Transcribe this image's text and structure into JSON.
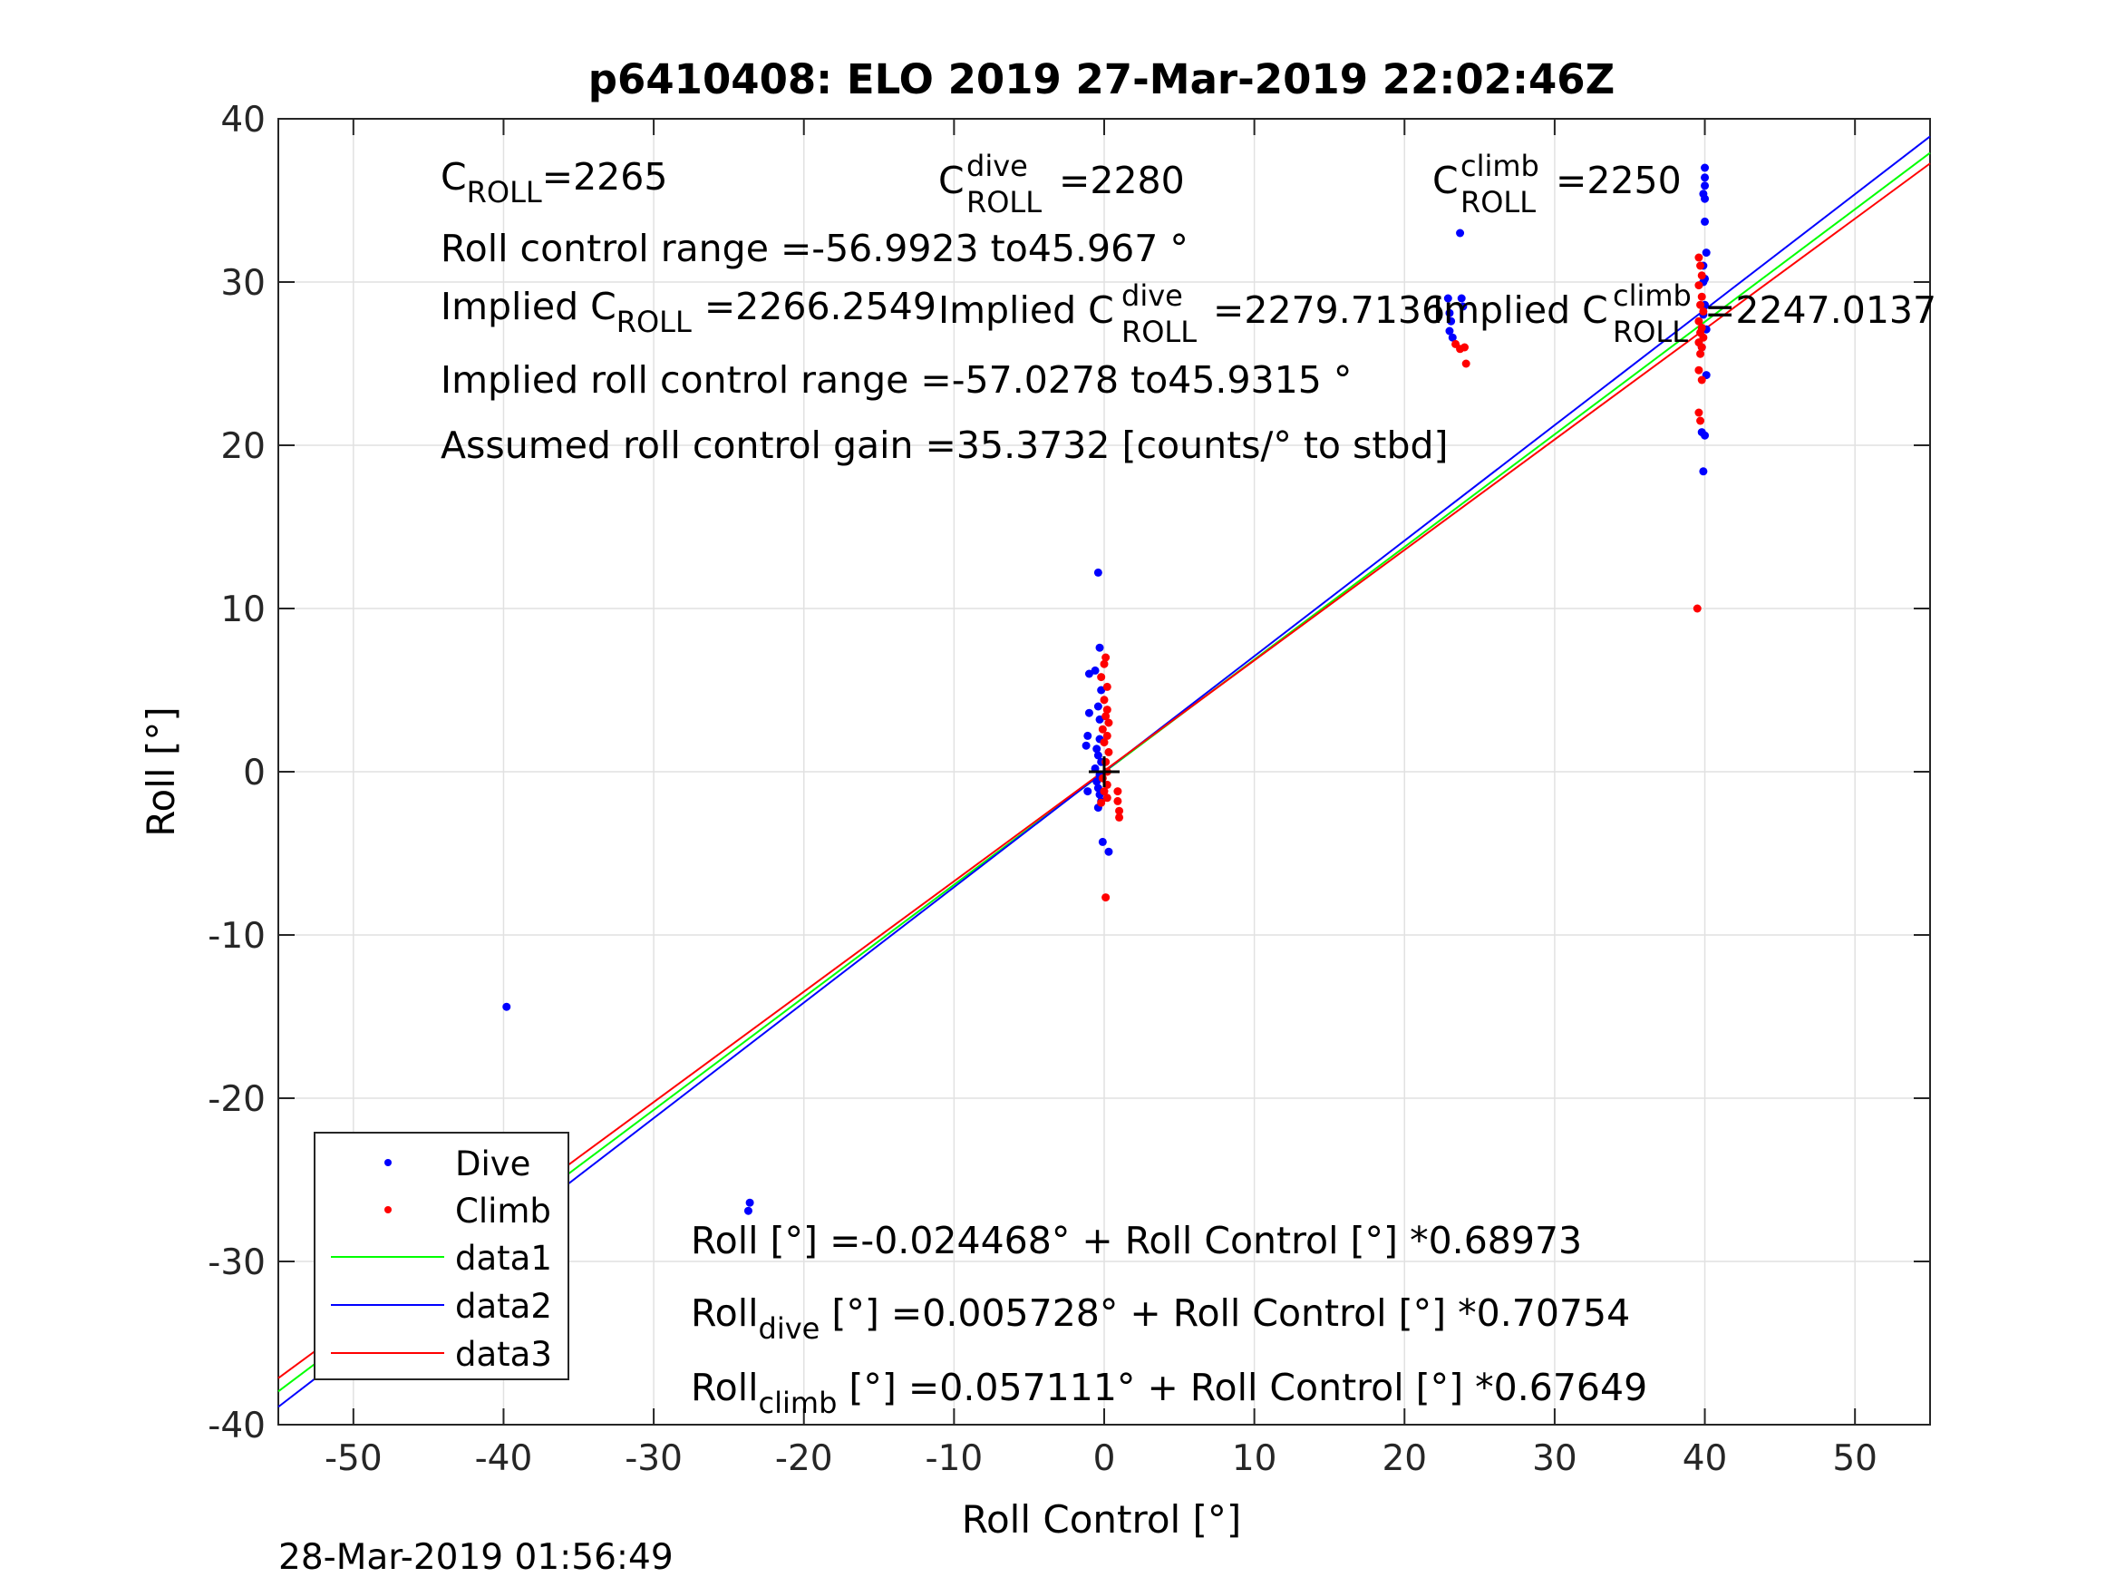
{
  "chart_data": {
    "type": "scatter",
    "title": "p6410408: ELO 2019 27-Mar-2019 22:02:46Z",
    "xlabel": "Roll Control [°]",
    "ylabel": "Roll [°]",
    "xlim": [
      -55,
      55
    ],
    "ylim": [
      -40,
      40
    ],
    "xticks": [
      -50,
      -40,
      -30,
      -20,
      -10,
      0,
      10,
      20,
      30,
      40,
      50
    ],
    "yticks": [
      -40,
      -30,
      -20,
      -10,
      0,
      10,
      20,
      30,
      40
    ],
    "xtick_labels": [
      "-50",
      "-40",
      "-30",
      "-20",
      "-10",
      "0",
      "10",
      "20",
      "30",
      "40",
      "50"
    ],
    "ytick_labels": [
      "-40",
      "-30",
      "-20",
      "-10",
      "0",
      "10",
      "20",
      "30",
      "40"
    ],
    "grid": true,
    "legend_position": "bottom-left",
    "timestamp": "28-Mar-2019 01:56:49",
    "series": [
      {
        "name": "Dive",
        "kind": "points",
        "color": "#0000ff",
        "points": [
          [
            -39.8,
            -14.4
          ],
          [
            -39.6,
            -25.2
          ],
          [
            -39.7,
            -25.6
          ],
          [
            -39.5,
            -26.0
          ],
          [
            -39.6,
            -26.3
          ],
          [
            -39.7,
            -26.6
          ],
          [
            -39.5,
            -26.9
          ],
          [
            -39.6,
            -27.2
          ],
          [
            -39.8,
            -27.5
          ],
          [
            -39.6,
            -27.8
          ],
          [
            -39.7,
            -28.1
          ],
          [
            -39.8,
            -28.5
          ],
          [
            -39.9,
            -28.9
          ],
          [
            -23.6,
            -26.4
          ],
          [
            -23.7,
            -26.9
          ],
          [
            -0.4,
            12.2
          ],
          [
            -0.3,
            7.6
          ],
          [
            -0.6,
            6.2
          ],
          [
            -1.0,
            6.0
          ],
          [
            -0.2,
            5.0
          ],
          [
            -0.4,
            4.0
          ],
          [
            -1.0,
            3.6
          ],
          [
            -0.3,
            3.2
          ],
          [
            -1.1,
            2.2
          ],
          [
            -0.3,
            2.0
          ],
          [
            -1.2,
            1.6
          ],
          [
            -0.5,
            1.4
          ],
          [
            -0.4,
            1.0
          ],
          [
            -0.2,
            0.6
          ],
          [
            -0.6,
            0.2
          ],
          [
            -0.3,
            -0.2
          ],
          [
            -0.5,
            -0.6
          ],
          [
            -0.4,
            -1.0
          ],
          [
            -1.1,
            -1.2
          ],
          [
            -0.3,
            -1.4
          ],
          [
            -0.2,
            -1.8
          ],
          [
            -0.4,
            -2.2
          ],
          [
            -0.1,
            -4.3
          ],
          [
            0.3,
            -4.9
          ],
          [
            22.9,
            29.0
          ],
          [
            23.0,
            28.1
          ],
          [
            23.1,
            27.6
          ],
          [
            23.0,
            27.0
          ],
          [
            23.2,
            26.6
          ],
          [
            23.7,
            33.0
          ],
          [
            23.8,
            29.0
          ],
          [
            23.9,
            28.5
          ],
          [
            40.0,
            37.0
          ],
          [
            40.0,
            36.4
          ],
          [
            40.0,
            35.9
          ],
          [
            39.9,
            35.4
          ],
          [
            40.0,
            35.1
          ],
          [
            40.0,
            33.7
          ],
          [
            40.1,
            31.8
          ],
          [
            39.9,
            31.0
          ],
          [
            40.0,
            30.2
          ],
          [
            39.9,
            30.0
          ],
          [
            40.0,
            28.6
          ],
          [
            39.9,
            28.0
          ],
          [
            40.1,
            27.1
          ],
          [
            39.8,
            26.0
          ],
          [
            40.1,
            24.3
          ],
          [
            39.8,
            20.8
          ],
          [
            40.0,
            20.6
          ],
          [
            39.9,
            18.4
          ]
        ]
      },
      {
        "name": "Climb",
        "kind": "points",
        "color": "#ff0000",
        "points": [
          [
            -39.7,
            -29.0
          ],
          [
            -39.6,
            -29.5
          ],
          [
            -39.7,
            -31.2
          ],
          [
            0.1,
            7.0
          ],
          [
            0.0,
            6.6
          ],
          [
            -0.2,
            5.8
          ],
          [
            0.2,
            5.2
          ],
          [
            0.0,
            4.4
          ],
          [
            0.2,
            3.8
          ],
          [
            0.1,
            3.4
          ],
          [
            0.3,
            3.0
          ],
          [
            -0.1,
            2.6
          ],
          [
            0.2,
            2.2
          ],
          [
            0.0,
            1.8
          ],
          [
            0.3,
            1.2
          ],
          [
            0.1,
            0.6
          ],
          [
            0.2,
            0.0
          ],
          [
            -0.1,
            -0.4
          ],
          [
            0.2,
            -0.8
          ],
          [
            0.0,
            -1.2
          ],
          [
            0.2,
            -1.6
          ],
          [
            -0.2,
            -1.9
          ],
          [
            0.9,
            -1.2
          ],
          [
            0.9,
            -1.8
          ],
          [
            1.0,
            -2.4
          ],
          [
            1.0,
            -2.8
          ],
          [
            0.1,
            -7.7
          ],
          [
            23.4,
            26.2
          ],
          [
            23.7,
            25.9
          ],
          [
            24.0,
            26.0
          ],
          [
            24.1,
            25.0
          ],
          [
            39.6,
            31.5
          ],
          [
            39.7,
            31.0
          ],
          [
            39.8,
            30.4
          ],
          [
            39.6,
            29.8
          ],
          [
            39.8,
            29.1
          ],
          [
            39.7,
            28.6
          ],
          [
            39.9,
            28.2
          ],
          [
            39.6,
            27.6
          ],
          [
            39.8,
            27.2
          ],
          [
            39.7,
            26.9
          ],
          [
            39.9,
            26.6
          ],
          [
            39.6,
            26.3
          ],
          [
            39.8,
            26.0
          ],
          [
            39.7,
            25.6
          ],
          [
            39.6,
            24.6
          ],
          [
            39.8,
            24.0
          ],
          [
            39.6,
            22.0
          ],
          [
            39.7,
            21.5
          ],
          [
            39.5,
            10.0
          ]
        ]
      },
      {
        "name": "data1",
        "kind": "line",
        "color": "#00ff00",
        "intercept": -0.024468,
        "slope": 0.68973,
        "x": [
          -55,
          55
        ]
      },
      {
        "name": "data2",
        "kind": "line",
        "color": "#0000ff",
        "intercept": 0.005728,
        "slope": 0.70754,
        "x": [
          -55,
          55
        ]
      },
      {
        "name": "data3",
        "kind": "line",
        "color": "#ff0000",
        "intercept": 0.057111,
        "slope": 0.67649,
        "x": [
          -55,
          55
        ]
      }
    ],
    "marker": {
      "shape": "plus",
      "color": "#000000",
      "x": 0,
      "y": 0
    },
    "annotations": {
      "c_roll_main": "C",
      "c_roll_sub": "ROLL",
      "c_roll_value": "=2265",
      "c_dive_main": "C",
      "c_dive_sup": "dive",
      "c_dive_sub": "ROLL",
      "c_dive_value": "=2280",
      "c_climb_main": "C",
      "c_climb_sup": "climb",
      "c_climb_sub": "ROLL",
      "c_climb_value": "=2250",
      "range": "Roll control range =-56.9923 to45.967 °",
      "implied_main": "Implied C",
      "implied_sub": "ROLL",
      "implied_value": "=2266.2549",
      "implied_dive_main": "Implied C",
      "implied_dive_sup": "dive",
      "implied_dive_sub": "ROLL",
      "implied_dive_value": "=2279.7136",
      "implied_climb_main": "Implied C",
      "implied_climb_sup": "climb",
      "implied_climb_sub": "ROLL",
      "implied_climb_value": "=2247.0137",
      "implied_range": "Implied roll control range =-57.0278 to45.9315 °",
      "gain": "Assumed roll control gain =35.3732 [counts/° to stbd]",
      "eq1": "Roll [°] =-0.024468° + Roll Control [°] *0.68973",
      "eq2_main": "Roll",
      "eq2_sub": "dive",
      "eq2_rest": " [°] =0.005728° + Roll Control [°] *0.70754",
      "eq3_main": "Roll",
      "eq3_sub": "climb",
      "eq3_rest": " [°] =0.057111° + Roll Control [°] *0.67649"
    }
  }
}
